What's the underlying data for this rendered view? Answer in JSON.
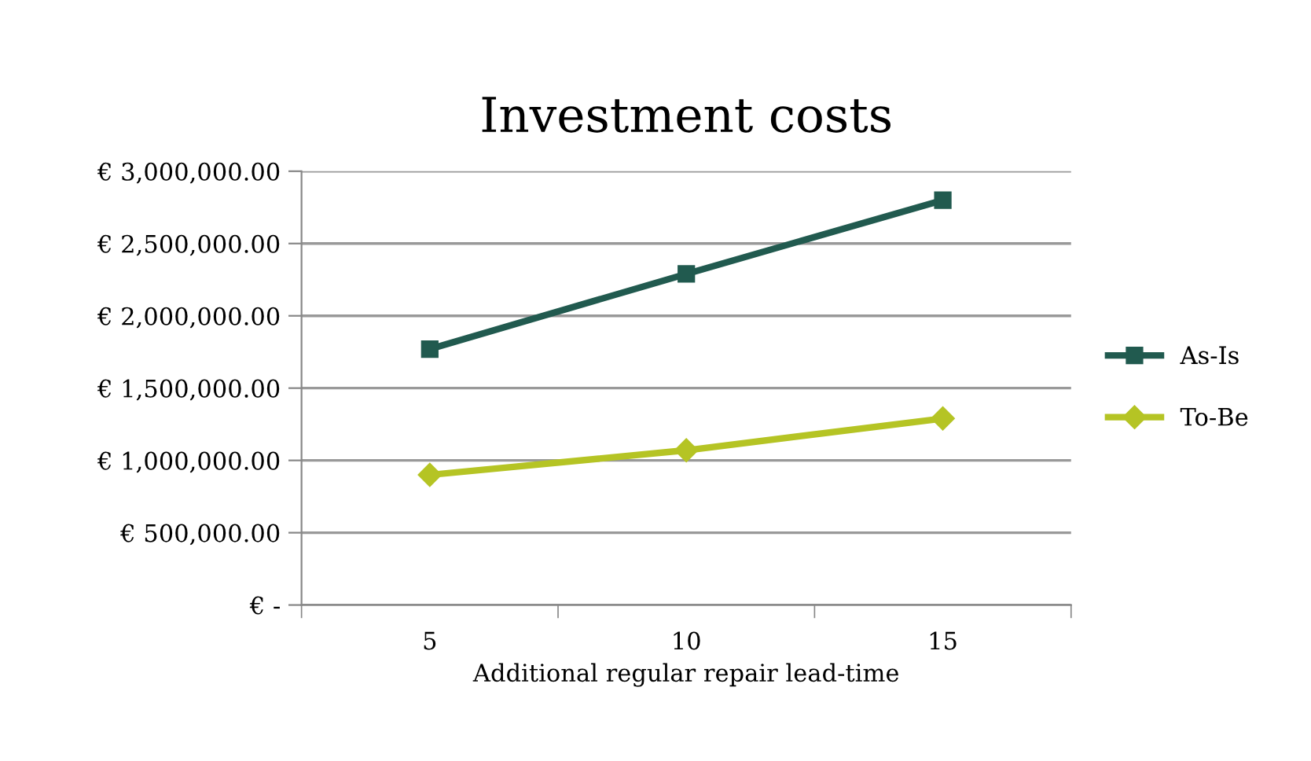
{
  "chart_data": {
    "type": "line",
    "title": "Investment costs",
    "xlabel": "Additional regular repair lead-time",
    "categories": [
      "5",
      "10",
      "15"
    ],
    "series": [
      {
        "name": "As-Is",
        "color": "#215a4f",
        "values": [
          1770000,
          2290000,
          2800000
        ],
        "marker": "square"
      },
      {
        "name": "To-Be",
        "color": "#b5c424",
        "values": [
          900000,
          1070000,
          1290000
        ],
        "marker": "diamond"
      }
    ],
    "ylim": [
      0,
      3000000
    ],
    "yticks": [
      {
        "value": 0,
        "label": "€ -"
      },
      {
        "value": 500000,
        "label": "€ 500,000.00"
      },
      {
        "value": 1000000,
        "label": "€ 1,000,000.00"
      },
      {
        "value": 1500000,
        "label": "€ 1,500,000.00"
      },
      {
        "value": 2000000,
        "label": "€ 2,000,000.00"
      },
      {
        "value": 2500000,
        "label": "€ 2,500,000.00"
      },
      {
        "value": 3000000,
        "label": "€ 3,000,000.00"
      }
    ],
    "grid": "y",
    "legend": "right",
    "line_style": "solid"
  }
}
